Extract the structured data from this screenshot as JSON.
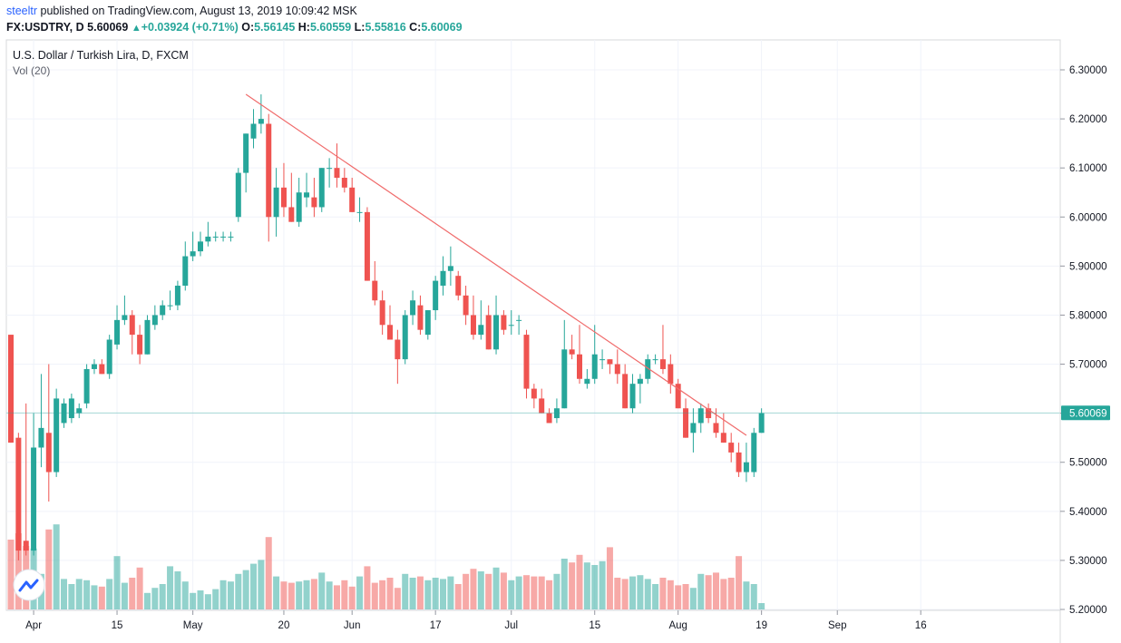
{
  "header": {
    "author": "steeltr",
    "published": "published on TradingView.com, August 13, 2019 10:09:42 MSK",
    "symbol": "FX:USDTRY, D",
    "last": "5.60069",
    "change": "+0.03924 (+0.71%)",
    "open_label": "O:",
    "open": "5.56145",
    "high_label": "H:",
    "high": "5.60559",
    "low_label": "L:",
    "low": "5.55816",
    "close_label": "C:",
    "close": "5.60069"
  },
  "legend": {
    "title": "U.S. Dollar / Turkish Lira, D, FXCM",
    "volume": "Vol (20)"
  },
  "icons": {
    "triangle": "triangle-up-icon",
    "logo": "tradingview-logo-icon"
  },
  "colors": {
    "up": "#26a69a",
    "down": "#ef5350",
    "trendline": "#f06b6b",
    "author": "#2962ff"
  },
  "chart_data": {
    "type": "candlestick",
    "y_axis_ticks": [
      "6.30000",
      "6.20000",
      "6.10000",
      "6.00000",
      "5.90000",
      "5.80000",
      "5.70000",
      "5.60000",
      "5.50000",
      "5.40000",
      "5.30000",
      "5.20000"
    ],
    "y_range": [
      5.2,
      6.32
    ],
    "x_axis_ticks": [
      {
        "label": "Apr",
        "bar": 3
      },
      {
        "label": "15",
        "bar": 14
      },
      {
        "label": "May",
        "bar": 24
      },
      {
        "label": "20",
        "bar": 36
      },
      {
        "label": "Jun",
        "bar": 45
      },
      {
        "label": "17",
        "bar": 56
      },
      {
        "label": "Jul",
        "bar": 66
      },
      {
        "label": "15",
        "bar": 77
      },
      {
        "label": "Aug",
        "bar": 88
      },
      {
        "label": "19",
        "bar": 99
      },
      {
        "label": "Sep",
        "bar": 109
      },
      {
        "label": "16",
        "bar": 120
      }
    ],
    "last_price_label": "5.60069",
    "last_price": 5.60069,
    "trendline": {
      "from": {
        "bar": 31,
        "price": 6.25
      },
      "to": {
        "bar": 97,
        "price": 5.555
      }
    },
    "bars": [
      {
        "o": 5.76,
        "h": 5.76,
        "l": 5.54,
        "c": 5.54,
        "v": 0.55
      },
      {
        "o": 5.55,
        "h": 5.56,
        "l": 5.3,
        "c": 5.32,
        "v": 0.6
      },
      {
        "o": 5.34,
        "h": 5.62,
        "l": 5.31,
        "c": 5.32,
        "v": 0.5
      },
      {
        "o": 5.32,
        "h": 5.6,
        "l": 5.31,
        "c": 5.53,
        "v": 0.48
      },
      {
        "o": 5.53,
        "h": 5.68,
        "l": 5.49,
        "c": 5.57,
        "v": 0.28
      },
      {
        "o": 5.56,
        "h": 5.7,
        "l": 5.42,
        "c": 5.48,
        "v": 0.63
      },
      {
        "o": 5.48,
        "h": 5.65,
        "l": 5.47,
        "c": 5.63,
        "v": 0.67
      },
      {
        "o": 5.58,
        "h": 5.63,
        "l": 5.57,
        "c": 5.62,
        "v": 0.24
      },
      {
        "o": 5.59,
        "h": 5.64,
        "l": 5.58,
        "c": 5.63,
        "v": 0.2
      },
      {
        "o": 5.6,
        "h": 5.62,
        "l": 5.59,
        "c": 5.61,
        "v": 0.24
      },
      {
        "o": 5.62,
        "h": 5.7,
        "l": 5.61,
        "c": 5.69,
        "v": 0.23
      },
      {
        "o": 5.69,
        "h": 5.71,
        "l": 5.68,
        "c": 5.7,
        "v": 0.19
      },
      {
        "o": 5.7,
        "h": 5.71,
        "l": 5.68,
        "c": 5.68,
        "v": 0.18
      },
      {
        "o": 5.68,
        "h": 5.76,
        "l": 5.67,
        "c": 5.75,
        "v": 0.24
      },
      {
        "o": 5.74,
        "h": 5.82,
        "l": 5.73,
        "c": 5.79,
        "v": 0.42
      },
      {
        "o": 5.79,
        "h": 5.84,
        "l": 5.78,
        "c": 5.8,
        "v": 0.21
      },
      {
        "o": 5.8,
        "h": 5.81,
        "l": 5.72,
        "c": 5.76,
        "v": 0.25
      },
      {
        "o": 5.76,
        "h": 5.78,
        "l": 5.7,
        "c": 5.72,
        "v": 0.33
      },
      {
        "o": 5.72,
        "h": 5.8,
        "l": 5.72,
        "c": 5.79,
        "v": 0.13
      },
      {
        "o": 5.78,
        "h": 5.82,
        "l": 5.77,
        "c": 5.8,
        "v": 0.17
      },
      {
        "o": 5.8,
        "h": 5.83,
        "l": 5.79,
        "c": 5.82,
        "v": 0.2
      },
      {
        "o": 5.82,
        "h": 5.85,
        "l": 5.81,
        "c": 5.82,
        "v": 0.34
      },
      {
        "o": 5.82,
        "h": 5.87,
        "l": 5.81,
        "c": 5.86,
        "v": 0.3
      },
      {
        "o": 5.86,
        "h": 5.95,
        "l": 5.85,
        "c": 5.92,
        "v": 0.22
      },
      {
        "o": 5.92,
        "h": 5.97,
        "l": 5.91,
        "c": 5.93,
        "v": 0.13
      },
      {
        "o": 5.93,
        "h": 5.97,
        "l": 5.92,
        "c": 5.95,
        "v": 0.15
      },
      {
        "o": 5.95,
        "h": 5.99,
        "l": 5.94,
        "c": 5.96,
        "v": 0.12
      },
      {
        "o": 5.96,
        "h": 5.97,
        "l": 5.95,
        "c": 5.96,
        "v": 0.16
      },
      {
        "o": 5.96,
        "h": 5.97,
        "l": 5.95,
        "c": 5.96,
        "v": 0.23
      },
      {
        "o": 5.96,
        "h": 5.97,
        "l": 5.95,
        "c": 5.96,
        "v": 0.22
      },
      {
        "o": 6.0,
        "h": 6.1,
        "l": 5.99,
        "c": 6.09,
        "v": 0.28
      },
      {
        "o": 6.09,
        "h": 6.17,
        "l": 6.05,
        "c": 6.17,
        "v": 0.31
      },
      {
        "o": 6.16,
        "h": 6.22,
        "l": 6.14,
        "c": 6.19,
        "v": 0.36
      },
      {
        "o": 6.19,
        "h": 6.25,
        "l": 6.17,
        "c": 6.2,
        "v": 0.39
      },
      {
        "o": 6.19,
        "h": 6.21,
        "l": 5.95,
        "c": 6.0,
        "v": 0.57
      },
      {
        "o": 6.0,
        "h": 6.1,
        "l": 5.96,
        "c": 6.06,
        "v": 0.26
      },
      {
        "o": 6.06,
        "h": 6.11,
        "l": 6.0,
        "c": 6.02,
        "v": 0.22
      },
      {
        "o": 6.02,
        "h": 6.09,
        "l": 5.99,
        "c": 5.99,
        "v": 0.21
      },
      {
        "o": 5.99,
        "h": 6.08,
        "l": 5.98,
        "c": 6.05,
        "v": 0.22
      },
      {
        "o": 6.04,
        "h": 6.09,
        "l": 6.02,
        "c": 6.05,
        "v": 0.23
      },
      {
        "o": 6.04,
        "h": 6.08,
        "l": 6.0,
        "c": 6.02,
        "v": 0.24
      },
      {
        "o": 6.02,
        "h": 6.1,
        "l": 6.01,
        "c": 6.1,
        "v": 0.29
      },
      {
        "o": 6.1,
        "h": 6.12,
        "l": 6.06,
        "c": 6.1,
        "v": 0.22
      },
      {
        "o": 6.1,
        "h": 6.15,
        "l": 6.06,
        "c": 6.08,
        "v": 0.19
      },
      {
        "o": 6.08,
        "h": 6.1,
        "l": 6.05,
        "c": 6.06,
        "v": 0.23
      },
      {
        "o": 6.06,
        "h": 6.08,
        "l": 6.01,
        "c": 6.01,
        "v": 0.18
      },
      {
        "o": 6.01,
        "h": 6.04,
        "l": 5.99,
        "c": 6.01,
        "v": 0.26
      },
      {
        "o": 6.01,
        "h": 6.02,
        "l": 5.87,
        "c": 5.87,
        "v": 0.34
      },
      {
        "o": 5.87,
        "h": 5.91,
        "l": 5.82,
        "c": 5.83,
        "v": 0.21
      },
      {
        "o": 5.83,
        "h": 5.85,
        "l": 5.76,
        "c": 5.78,
        "v": 0.23
      },
      {
        "o": 5.78,
        "h": 5.82,
        "l": 5.75,
        "c": 5.75,
        "v": 0.25
      },
      {
        "o": 5.75,
        "h": 5.77,
        "l": 5.66,
        "c": 5.71,
        "v": 0.17
      },
      {
        "o": 5.71,
        "h": 5.81,
        "l": 5.7,
        "c": 5.8,
        "v": 0.28
      },
      {
        "o": 5.8,
        "h": 5.85,
        "l": 5.78,
        "c": 5.83,
        "v": 0.25
      },
      {
        "o": 5.82,
        "h": 5.84,
        "l": 5.76,
        "c": 5.77,
        "v": 0.26
      },
      {
        "o": 5.76,
        "h": 5.81,
        "l": 5.75,
        "c": 5.81,
        "v": 0.23
      },
      {
        "o": 5.81,
        "h": 5.88,
        "l": 5.79,
        "c": 5.87,
        "v": 0.25
      },
      {
        "o": 5.86,
        "h": 5.92,
        "l": 5.84,
        "c": 5.89,
        "v": 0.24
      },
      {
        "o": 5.89,
        "h": 5.94,
        "l": 5.86,
        "c": 5.9,
        "v": 0.26
      },
      {
        "o": 5.88,
        "h": 5.89,
        "l": 5.83,
        "c": 5.84,
        "v": 0.2
      },
      {
        "o": 5.84,
        "h": 5.86,
        "l": 5.78,
        "c": 5.8,
        "v": 0.28
      },
      {
        "o": 5.8,
        "h": 5.84,
        "l": 5.75,
        "c": 5.76,
        "v": 0.32
      },
      {
        "o": 5.76,
        "h": 5.83,
        "l": 5.75,
        "c": 5.78,
        "v": 0.3
      },
      {
        "o": 5.8,
        "h": 5.82,
        "l": 5.73,
        "c": 5.73,
        "v": 0.28
      },
      {
        "o": 5.73,
        "h": 5.84,
        "l": 5.72,
        "c": 5.8,
        "v": 0.33
      },
      {
        "o": 5.8,
        "h": 5.81,
        "l": 5.76,
        "c": 5.77,
        "v": 0.29
      },
      {
        "o": 5.78,
        "h": 5.81,
        "l": 5.76,
        "c": 5.78,
        "v": 0.23
      },
      {
        "o": 5.79,
        "h": 5.8,
        "l": 5.76,
        "c": 5.79,
        "v": 0.26
      },
      {
        "o": 5.76,
        "h": 5.77,
        "l": 5.63,
        "c": 5.65,
        "v": 0.27
      },
      {
        "o": 5.65,
        "h": 5.66,
        "l": 5.61,
        "c": 5.63,
        "v": 0.26
      },
      {
        "o": 5.63,
        "h": 5.65,
        "l": 5.6,
        "c": 5.6,
        "v": 0.26
      },
      {
        "o": 5.6,
        "h": 5.61,
        "l": 5.58,
        "c": 5.58,
        "v": 0.23
      },
      {
        "o": 5.59,
        "h": 5.63,
        "l": 5.58,
        "c": 5.61,
        "v": 0.28
      },
      {
        "o": 5.61,
        "h": 5.79,
        "l": 5.61,
        "c": 5.73,
        "v": 0.4
      },
      {
        "o": 5.73,
        "h": 5.76,
        "l": 5.71,
        "c": 5.72,
        "v": 0.37
      },
      {
        "o": 5.72,
        "h": 5.78,
        "l": 5.66,
        "c": 5.67,
        "v": 0.43
      },
      {
        "o": 5.66,
        "h": 5.69,
        "l": 5.65,
        "c": 5.67,
        "v": 0.37
      },
      {
        "o": 5.67,
        "h": 5.78,
        "l": 5.66,
        "c": 5.72,
        "v": 0.35
      },
      {
        "o": 5.71,
        "h": 5.73,
        "l": 5.69,
        "c": 5.71,
        "v": 0.38
      },
      {
        "o": 5.71,
        "h": 5.71,
        "l": 5.68,
        "c": 5.7,
        "v": 0.49
      },
      {
        "o": 5.7,
        "h": 5.73,
        "l": 5.66,
        "c": 5.68,
        "v": 0.25
      },
      {
        "o": 5.68,
        "h": 5.7,
        "l": 5.61,
        "c": 5.61,
        "v": 0.24
      },
      {
        "o": 5.61,
        "h": 5.68,
        "l": 5.6,
        "c": 5.66,
        "v": 0.26
      },
      {
        "o": 5.66,
        "h": 5.68,
        "l": 5.62,
        "c": 5.67,
        "v": 0.27
      },
      {
        "o": 5.67,
        "h": 5.72,
        "l": 5.66,
        "c": 5.71,
        "v": 0.24
      },
      {
        "o": 5.71,
        "h": 5.72,
        "l": 5.7,
        "c": 5.71,
        "v": 0.2
      },
      {
        "o": 5.71,
        "h": 5.78,
        "l": 5.68,
        "c": 5.69,
        "v": 0.25
      },
      {
        "o": 5.7,
        "h": 5.72,
        "l": 5.64,
        "c": 5.66,
        "v": 0.23
      },
      {
        "o": 5.66,
        "h": 5.67,
        "l": 5.61,
        "c": 5.61,
        "v": 0.19
      },
      {
        "o": 5.61,
        "h": 5.63,
        "l": 5.55,
        "c": 5.55,
        "v": 0.2
      },
      {
        "o": 5.56,
        "h": 5.61,
        "l": 5.52,
        "c": 5.58,
        "v": 0.17
      },
      {
        "o": 5.58,
        "h": 5.62,
        "l": 5.56,
        "c": 5.61,
        "v": 0.28
      },
      {
        "o": 5.61,
        "h": 5.62,
        "l": 5.58,
        "c": 5.59,
        "v": 0.27
      },
      {
        "o": 5.58,
        "h": 5.61,
        "l": 5.55,
        "c": 5.56,
        "v": 0.29
      },
      {
        "o": 5.56,
        "h": 5.6,
        "l": 5.54,
        "c": 5.54,
        "v": 0.24
      },
      {
        "o": 5.54,
        "h": 5.56,
        "l": 5.5,
        "c": 5.52,
        "v": 0.25
      },
      {
        "o": 5.52,
        "h": 5.54,
        "l": 5.47,
        "c": 5.48,
        "v": 0.42
      },
      {
        "o": 5.48,
        "h": 5.54,
        "l": 5.46,
        "c": 5.5,
        "v": 0.22
      },
      {
        "o": 5.48,
        "h": 5.57,
        "l": 5.47,
        "c": 5.56,
        "v": 0.2
      },
      {
        "o": 5.56,
        "h": 5.61,
        "l": 5.56,
        "c": 5.6,
        "v": 0.05
      }
    ]
  }
}
